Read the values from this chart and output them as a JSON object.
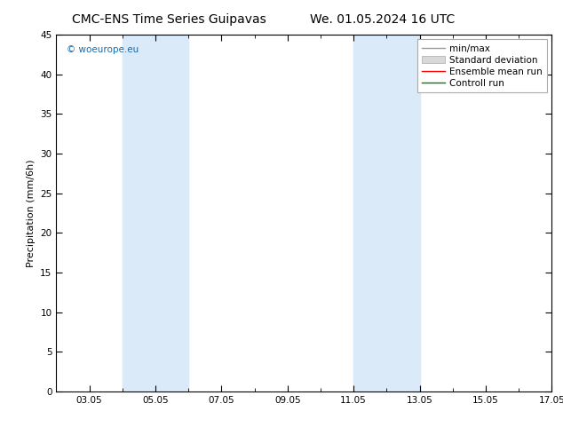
{
  "title_left": "CMC-ENS Time Series Guipavas",
  "title_right": "We. 01.05.2024 16 UTC",
  "ylabel": "Precipitation (mm/6h)",
  "ymin": 0,
  "ymax": 45,
  "yticks": [
    0,
    5,
    10,
    15,
    20,
    25,
    30,
    35,
    40,
    45
  ],
  "xmin": 2,
  "xmax": 17,
  "xtick_labels": [
    "03.05",
    "05.05",
    "07.05",
    "09.05",
    "11.05",
    "13.05",
    "15.05",
    "17.05"
  ],
  "xtick_positions": [
    3,
    5,
    7,
    9,
    11,
    13,
    15,
    17
  ],
  "shaded_bands": [
    {
      "xstart": 4.0,
      "xend": 6.0
    },
    {
      "xstart": 11.0,
      "xend": 13.0
    }
  ],
  "shade_color": "#daeaf8",
  "background_color": "#ffffff",
  "watermark": "© woeurope.eu",
  "legend_items": [
    {
      "label": "min/max",
      "color": "#999999",
      "linestyle": "-",
      "linewidth": 1.0
    },
    {
      "label": "Standard deviation",
      "color": "#cccccc",
      "linestyle": "-",
      "linewidth": 5
    },
    {
      "label": "Ensemble mean run",
      "color": "#ff0000",
      "linestyle": "-",
      "linewidth": 1.0
    },
    {
      "label": "Controll run",
      "color": "#008000",
      "linestyle": "-",
      "linewidth": 1.0
    }
  ],
  "title_fontsize": 10,
  "axis_fontsize": 8,
  "tick_fontsize": 7.5,
  "legend_fontsize": 7.5
}
